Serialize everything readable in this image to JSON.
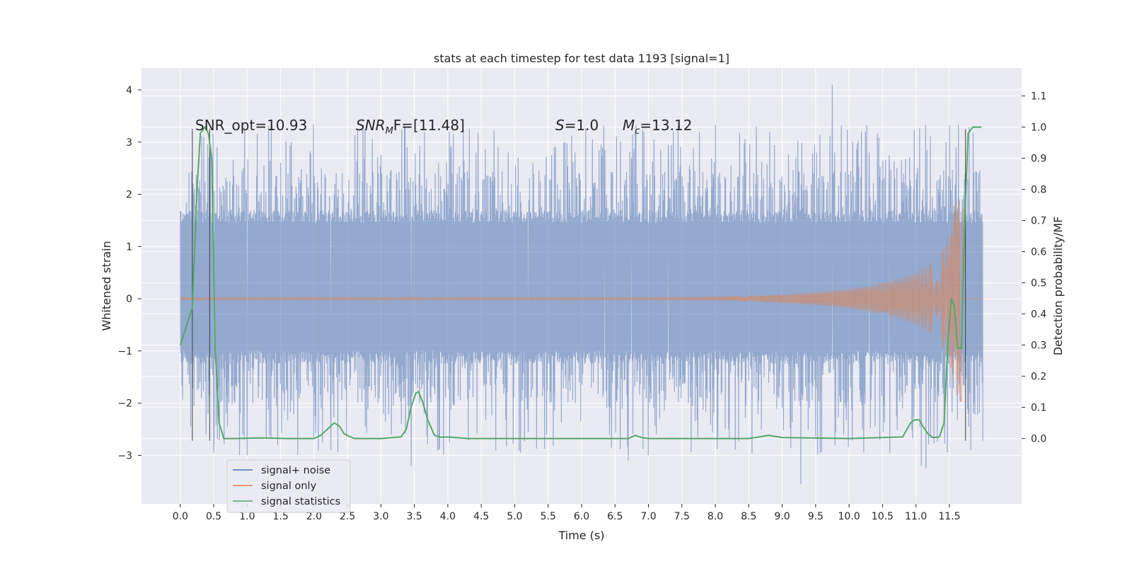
{
  "chart_data": {
    "type": "line",
    "title": "stats at each timestep for test data 1193 [signal=1]",
    "xlabel": "Time (s)",
    "ylabel_left": "Whitened strain",
    "ylabel_right": "Detection probability/MF",
    "x_ticks": [
      "0.0",
      "0.5",
      "1.0",
      "1.5",
      "2.0",
      "2.5",
      "3.0",
      "3.5",
      "4.0",
      "4.5",
      "5.0",
      "5.5",
      "6.0",
      "6.5",
      "7.0",
      "7.5",
      "8.0",
      "8.5",
      "9.0",
      "9.5",
      "10.0",
      "10.5",
      "11.0",
      "11.5"
    ],
    "y_left_ticks": [
      "4",
      "3",
      "2",
      "1",
      "0",
      "−1",
      "−2",
      "−3"
    ],
    "y_right_ticks": [
      "1.1",
      "1.0",
      "0.9",
      "0.8",
      "0.7",
      "0.6",
      "0.5",
      "0.4",
      "0.3",
      "0.2",
      "0.1",
      "0.0"
    ],
    "xlim": [
      -0.58,
      12.58
    ],
    "ylim_left": [
      -3.93,
      4.42
    ],
    "ylim_right": [
      -0.21,
      1.19
    ],
    "grid": true,
    "legend_position": "lower-left",
    "annotations": {
      "snr_opt": "SNR_opt=10.93",
      "snr_mf_prefix": "SNR",
      "snr_mf_sub": "M",
      "snr_mf_rest": "F=[11.48]",
      "s_sym": "S",
      "s_val": "=1.0",
      "mc_sym": "M",
      "mc_sub": "c",
      "mc_val": "=13.12"
    },
    "legend": [
      {
        "label": "signal+ noise",
        "color": "#4c72b0"
      },
      {
        "label": "signal only",
        "color": "#dd8452"
      },
      {
        "label": "signal statistics",
        "color": "#55a868"
      }
    ],
    "series": [
      {
        "name": "signal+ noise",
        "color": "#4c72b0",
        "x_range": [
          0.0,
          12.0
        ],
        "band_core": [
          -1.0,
          1.45
        ],
        "spikes_up": [
          [
            0.55,
            2.9
          ],
          [
            1.5,
            2.6
          ],
          [
            2.65,
            3.25
          ],
          [
            3.0,
            2.75
          ],
          [
            4.75,
            2.9
          ],
          [
            5.05,
            2.7
          ],
          [
            5.55,
            2.75
          ],
          [
            5.75,
            3.0
          ],
          [
            6.35,
            2.85
          ],
          [
            6.75,
            2.7
          ],
          [
            7.3,
            2.95
          ],
          [
            9.75,
            4.1
          ],
          [
            10.3,
            2.8
          ],
          [
            10.6,
            2.75
          ],
          [
            11.45,
            3.0
          ],
          [
            11.6,
            2.9
          ]
        ],
        "spikes_down": [
          [
            0.5,
            -2.95
          ],
          [
            1.0,
            -3.0
          ],
          [
            2.25,
            -2.9
          ],
          [
            3.45,
            -3.2
          ],
          [
            5.2,
            -2.55
          ],
          [
            6.7,
            -3.1
          ],
          [
            7.0,
            -3.0
          ],
          [
            9.28,
            -3.55
          ],
          [
            11.08,
            -3.2
          ],
          [
            11.15,
            -3.25
          ]
        ]
      },
      {
        "name": "signal only",
        "color": "#dd8452",
        "x_range": [
          0.0,
          12.0
        ],
        "chirp_end": 11.7,
        "amplitude_start": 0.02,
        "amplitude_peak": 2.0
      },
      {
        "name": "signal statistics",
        "color": "#55a868",
        "x": [
          0.0,
          0.12,
          0.18,
          0.25,
          0.3,
          0.37,
          0.42,
          0.47,
          0.52,
          0.58,
          0.65,
          0.8,
          1.2,
          1.6,
          2.0,
          2.1,
          2.2,
          2.3,
          2.38,
          2.45,
          2.6,
          3.0,
          3.3,
          3.38,
          3.45,
          3.52,
          3.56,
          3.62,
          3.7,
          3.8,
          3.9,
          4.0,
          4.3,
          5.0,
          6.0,
          6.7,
          6.8,
          6.9,
          7.0,
          8.0,
          8.5,
          8.8,
          9.0,
          10.0,
          10.8,
          10.92,
          10.98,
          11.05,
          11.1,
          11.18,
          11.25,
          11.35,
          11.42,
          11.48,
          11.53,
          11.58,
          11.62,
          11.68,
          11.73,
          11.78,
          11.85,
          11.92,
          11.98
        ],
        "y": [
          0.3,
          0.38,
          0.42,
          0.8,
          0.98,
          1.0,
          0.98,
          0.9,
          0.3,
          0.05,
          0.0,
          0.0,
          0.002,
          0.0,
          0.0,
          0.01,
          0.03,
          0.05,
          0.04,
          0.015,
          0.0,
          0.0,
          0.005,
          0.03,
          0.1,
          0.145,
          0.15,
          0.12,
          0.06,
          0.01,
          0.004,
          0.005,
          0.0,
          0.0,
          0.0,
          0.0,
          0.01,
          0.003,
          0.0,
          0.0,
          0.0,
          0.01,
          0.003,
          0.0,
          0.005,
          0.05,
          0.06,
          0.06,
          0.04,
          0.015,
          0.003,
          0.005,
          0.05,
          0.32,
          0.45,
          0.42,
          0.29,
          0.29,
          0.7,
          0.98,
          1.0,
          1.0,
          1.0
        ]
      }
    ],
    "vertical_lines": [
      0.18,
      0.44,
      11.74
    ],
    "vertical_line_range": [
      -2.72,
      3.25
    ]
  }
}
